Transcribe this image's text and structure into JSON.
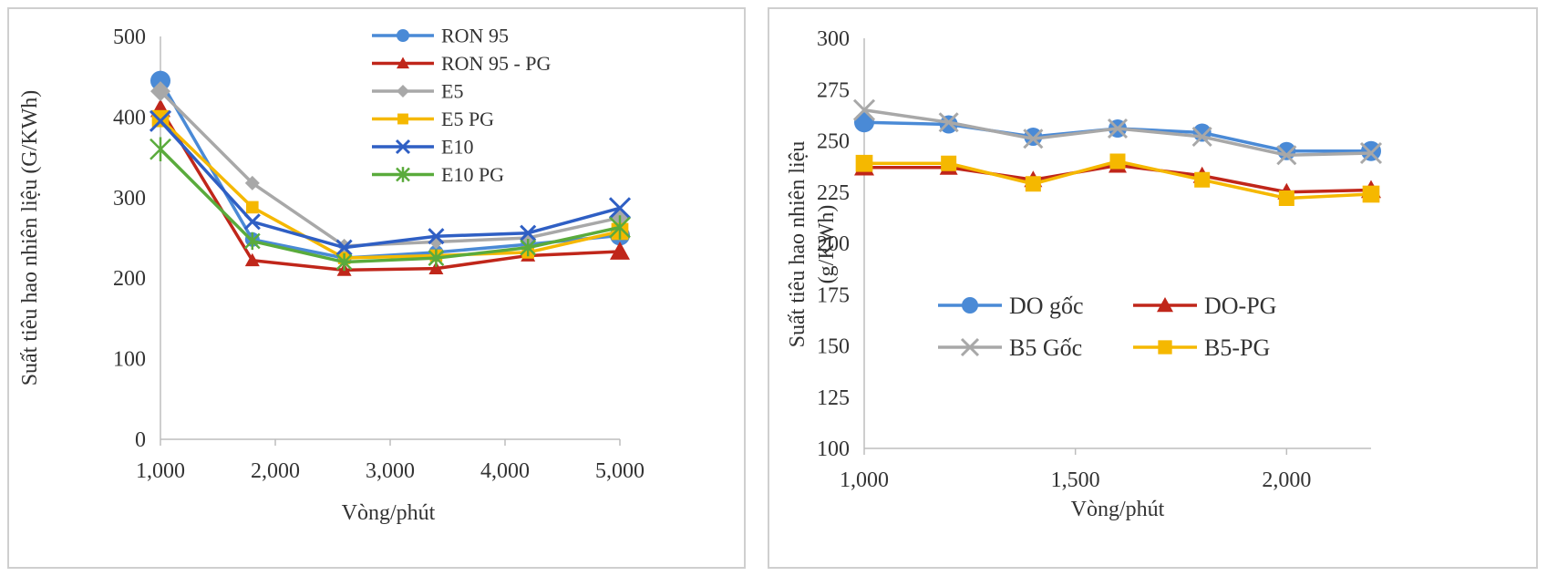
{
  "chart_data": [
    {
      "type": "line",
      "title": "",
      "xlabel": "Vòng/phút",
      "ylabel": "Suất tiêu hao nhiên liệu (G/KWh)",
      "x": [
        1000,
        1800,
        2600,
        3400,
        4200,
        5000
      ],
      "xticks": [
        "1,000",
        "2,000",
        "3,000",
        "4,000",
        "5,000"
      ],
      "xtick_values": [
        1000,
        2000,
        3000,
        4000,
        5000
      ],
      "xlim": [
        1000,
        5000
      ],
      "ylim": [
        0,
        500
      ],
      "yticks": [
        "0",
        "100",
        "200",
        "300",
        "400",
        "500"
      ],
      "ytick_values": [
        0,
        100,
        200,
        300,
        400,
        500
      ],
      "legend_position": "top-right",
      "series": [
        {
          "name": "RON 95",
          "color": "#4a8ad6",
          "marker": "circle",
          "values": [
            445,
            248,
            225,
            232,
            242,
            253
          ]
        },
        {
          "name": "RON 95 - PG",
          "color": "#c0261a",
          "marker": "triangle",
          "values": [
            410,
            222,
            210,
            212,
            228,
            233
          ]
        },
        {
          "name": "E5",
          "color": "#a8a8a8",
          "marker": "diamond",
          "values": [
            432,
            318,
            240,
            245,
            250,
            275
          ]
        },
        {
          "name": "E5 PG",
          "color": "#f5b800",
          "marker": "square",
          "values": [
            398,
            288,
            225,
            228,
            232,
            258
          ]
        },
        {
          "name": "E10",
          "color": "#2f5fc4",
          "marker": "x",
          "values": [
            395,
            270,
            238,
            252,
            256,
            287
          ]
        },
        {
          "name": "E10 PG",
          "color": "#5aab3c",
          "marker": "star",
          "values": [
            360,
            246,
            220,
            225,
            238,
            263
          ]
        }
      ]
    },
    {
      "type": "line",
      "title": "",
      "xlabel": "Vòng/phút",
      "ylabel_lines": [
        "Suất tiêu hao nhiên liệu",
        "(g/KWh)"
      ],
      "x": [
        1000,
        1200,
        1400,
        1600,
        1800,
        2000,
        2200
      ],
      "xticks": [
        "1,000",
        "1,500",
        "2,000"
      ],
      "xtick_values": [
        1000,
        1500,
        2000
      ],
      "xlim": [
        1000,
        2200
      ],
      "ylim": [
        100,
        300
      ],
      "yticks": [
        "100",
        "125",
        "150",
        "175",
        "200",
        "225",
        "250",
        "275",
        "300"
      ],
      "ytick_values": [
        100,
        125,
        150,
        175,
        200,
        225,
        250,
        275,
        300
      ],
      "legend_position": "center",
      "series": [
        {
          "name": "DO gốc",
          "color": "#4a8ad6",
          "marker": "circle",
          "values": [
            259,
            258,
            252,
            256,
            254,
            245,
            245
          ]
        },
        {
          "name": "DO-PG",
          "color": "#c0261a",
          "marker": "triangle",
          "values": [
            237,
            237,
            231,
            238,
            233,
            225,
            226
          ]
        },
        {
          "name": "B5 Gốc",
          "color": "#a8a8a8",
          "marker": "x",
          "values": [
            265,
            259,
            251,
            256,
            252,
            243,
            244
          ]
        },
        {
          "name": "B5-PG",
          "color": "#f5b800",
          "marker": "square",
          "values": [
            239,
            239,
            229,
            240,
            231,
            222,
            224
          ]
        }
      ]
    }
  ]
}
